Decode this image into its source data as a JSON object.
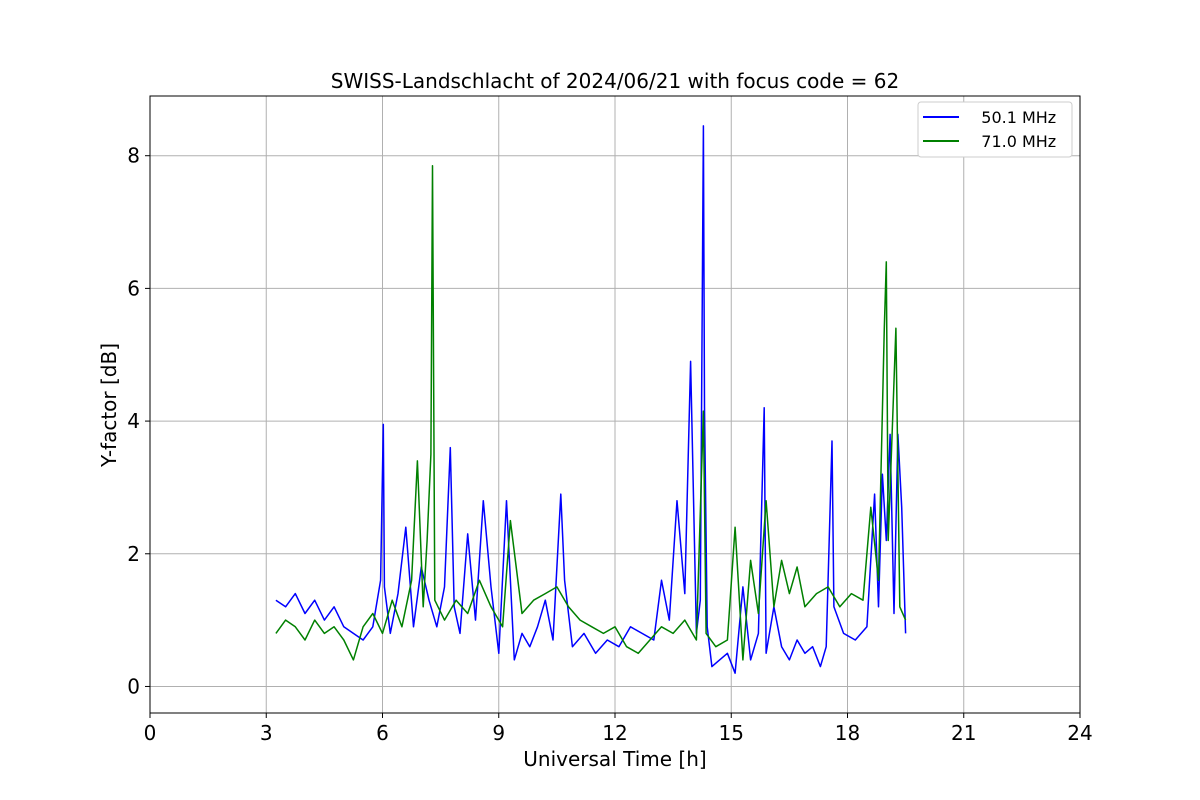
{
  "chart_data": {
    "type": "line",
    "title": "SWISS-Landschlacht of 2024/06/21 with focus code = 62",
    "xlabel": "Universal Time [h]",
    "ylabel": "Y-factor [dB]",
    "xlim": [
      0,
      24
    ],
    "ylim": [
      -0.4,
      8.9
    ],
    "xticks": [
      0,
      3,
      6,
      9,
      12,
      15,
      18,
      21,
      24
    ],
    "yticks": [
      0,
      2,
      4,
      6,
      8
    ],
    "grid": true,
    "legend_position": "top-right",
    "series": [
      {
        "name": "   50.1 MHz",
        "color": "#0000ff",
        "x": [
          3.25,
          3.5,
          3.75,
          4.0,
          4.25,
          4.5,
          4.75,
          5.0,
          5.25,
          5.5,
          5.75,
          5.95,
          6.02,
          6.05,
          6.2,
          6.4,
          6.6,
          6.8,
          7.0,
          7.2,
          7.4,
          7.6,
          7.75,
          7.85,
          8.0,
          8.2,
          8.4,
          8.6,
          8.8,
          9.0,
          9.2,
          9.4,
          9.6,
          9.8,
          10.0,
          10.2,
          10.4,
          10.6,
          10.7,
          10.9,
          11.2,
          11.5,
          11.8,
          12.1,
          12.4,
          12.7,
          13.0,
          13.2,
          13.4,
          13.6,
          13.8,
          13.95,
          14.1,
          14.2,
          14.28,
          14.31,
          14.38,
          14.5,
          14.7,
          14.9,
          15.1,
          15.3,
          15.5,
          15.7,
          15.85,
          15.9,
          16.1,
          16.3,
          16.5,
          16.7,
          16.9,
          17.1,
          17.3,
          17.45,
          17.6,
          17.65,
          17.9,
          18.2,
          18.5,
          18.7,
          18.8,
          18.9,
          19.0,
          19.1,
          19.2,
          19.3,
          19.4,
          19.5
        ],
        "y": [
          1.3,
          1.2,
          1.4,
          1.1,
          1.3,
          1.0,
          1.2,
          0.9,
          0.8,
          0.7,
          0.9,
          1.6,
          3.95,
          1.5,
          0.8,
          1.4,
          2.4,
          0.9,
          1.8,
          1.3,
          0.9,
          1.5,
          3.6,
          1.2,
          0.8,
          2.3,
          1.0,
          2.8,
          1.5,
          0.5,
          2.8,
          0.4,
          0.8,
          0.6,
          0.9,
          1.3,
          0.7,
          2.9,
          1.6,
          0.6,
          0.8,
          0.5,
          0.7,
          0.6,
          0.9,
          0.8,
          0.7,
          1.6,
          1.0,
          2.8,
          1.4,
          4.9,
          0.8,
          1.3,
          8.45,
          4.2,
          0.9,
          0.3,
          0.4,
          0.5,
          0.2,
          1.5,
          0.4,
          0.8,
          4.2,
          0.5,
          1.2,
          0.6,
          0.4,
          0.7,
          0.5,
          0.6,
          0.3,
          0.6,
          3.7,
          1.2,
          0.8,
          0.7,
          0.9,
          2.9,
          1.2,
          3.2,
          2.2,
          3.8,
          1.1,
          3.8,
          2.7,
          0.8
        ]
      },
      {
        "name": "   71.0 MHz",
        "color": "#008000",
        "x": [
          3.25,
          3.5,
          3.75,
          4.0,
          4.25,
          4.5,
          4.75,
          5.0,
          5.25,
          5.5,
          5.75,
          6.0,
          6.25,
          6.5,
          6.75,
          6.9,
          7.05,
          7.15,
          7.25,
          7.29,
          7.35,
          7.6,
          7.9,
          8.2,
          8.5,
          8.8,
          9.1,
          9.3,
          9.6,
          9.9,
          10.2,
          10.5,
          10.8,
          11.1,
          11.4,
          11.7,
          12.0,
          12.3,
          12.6,
          12.9,
          13.2,
          13.5,
          13.8,
          14.1,
          14.28,
          14.35,
          14.6,
          14.9,
          15.1,
          15.3,
          15.5,
          15.7,
          15.9,
          16.1,
          16.3,
          16.5,
          16.7,
          16.9,
          17.2,
          17.5,
          17.8,
          18.1,
          18.4,
          18.6,
          18.8,
          18.95,
          19.0,
          19.05,
          19.15,
          19.25,
          19.35,
          19.5
        ],
        "y": [
          0.8,
          1.0,
          0.9,
          0.7,
          1.0,
          0.8,
          0.9,
          0.7,
          0.4,
          0.9,
          1.1,
          0.8,
          1.3,
          0.9,
          1.6,
          3.4,
          1.2,
          2.2,
          3.5,
          7.85,
          1.3,
          1.0,
          1.3,
          1.1,
          1.6,
          1.2,
          0.9,
          2.5,
          1.1,
          1.3,
          1.4,
          1.5,
          1.2,
          1.0,
          0.9,
          0.8,
          0.9,
          0.6,
          0.5,
          0.7,
          0.9,
          0.8,
          1.0,
          0.7,
          4.15,
          0.8,
          0.6,
          0.7,
          2.4,
          0.4,
          1.9,
          1.1,
          2.8,
          1.2,
          1.9,
          1.4,
          1.8,
          1.2,
          1.4,
          1.5,
          1.2,
          1.4,
          1.3,
          2.7,
          1.6,
          5.4,
          6.4,
          2.2,
          3.8,
          5.4,
          1.2,
          1.0
        ]
      }
    ]
  }
}
